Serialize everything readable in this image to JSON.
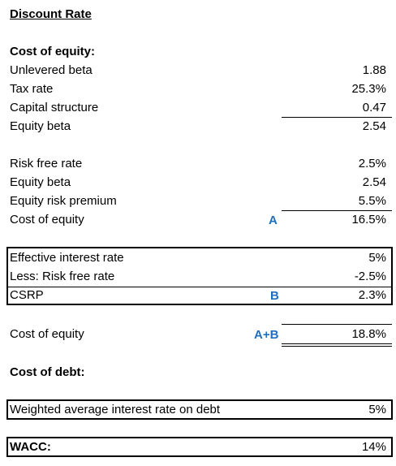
{
  "title": "Discount Rate",
  "cost_of_equity": {
    "heading": "Cost of equity:",
    "beta_rows": [
      {
        "label": "Unlevered beta",
        "value": "1.88"
      },
      {
        "label": "Tax rate",
        "value": "25.3%"
      },
      {
        "label": "Capital structure",
        "value": "0.47"
      },
      {
        "label": "Equity beta",
        "value": "2.54"
      }
    ],
    "capm_rows": [
      {
        "label": "Risk free rate",
        "value": "2.5%"
      },
      {
        "label": "Equity beta",
        "value": "2.54"
      },
      {
        "label": "Equity risk premium",
        "value": "5.5%"
      },
      {
        "label": "Cost of equity",
        "marker": "A",
        "value": "16.5%"
      }
    ],
    "csrp_rows": [
      {
        "label": "Effective interest rate",
        "value": "5%"
      },
      {
        "label": "Less: Risk free rate",
        "value": "-2.5%"
      },
      {
        "label": "CSRP",
        "marker": "B",
        "value": "2.3%"
      }
    ],
    "total": {
      "label": "Cost of equity",
      "marker": "A+B",
      "value": "18.8%"
    }
  },
  "cost_of_debt": {
    "heading": "Cost of debt:",
    "row": {
      "label": "Weighted average interest rate on debt",
      "value": "5%"
    }
  },
  "wacc": {
    "label": "WACC:",
    "value": "14%"
  }
}
